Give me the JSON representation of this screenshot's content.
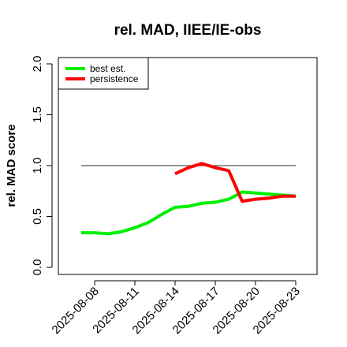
{
  "chart_data": {
    "type": "line",
    "title": "rel. MAD, IIEE/IE-obs",
    "xlabel": "",
    "ylabel": "rel. MAD score",
    "ylim": [
      0.0,
      2.0
    ],
    "yticks": [
      "0.0",
      "0.5",
      "1.0",
      "1.5",
      "2.0"
    ],
    "xticks": [
      "2025-08-08",
      "2025-08-11",
      "2025-08-14",
      "2025-08-17",
      "2025-08-20",
      "2025-08-23"
    ],
    "x_range": [
      "2025-08-06",
      "2025-08-24"
    ],
    "grid": false,
    "legend_position": "top-left",
    "reference_line": {
      "y": 1.0,
      "x_start": "2025-08-07",
      "x_end": "2025-08-23",
      "color": "#555555"
    },
    "series": [
      {
        "name": "best est.",
        "color": "#00ee00",
        "x": [
          "2025-08-07",
          "2025-08-08",
          "2025-08-09",
          "2025-08-10",
          "2025-08-11",
          "2025-08-12",
          "2025-08-13",
          "2025-08-14",
          "2025-08-15",
          "2025-08-16",
          "2025-08-17",
          "2025-08-18",
          "2025-08-19",
          "2025-08-20",
          "2025-08-21",
          "2025-08-22",
          "2025-08-23"
        ],
        "values": [
          0.34,
          0.34,
          0.33,
          0.35,
          0.39,
          0.44,
          0.52,
          0.59,
          0.6,
          0.63,
          0.64,
          0.67,
          0.74,
          0.73,
          0.72,
          0.71,
          0.7
        ]
      },
      {
        "name": "persistence",
        "color": "#ff0000",
        "x": [
          "2025-08-14",
          "2025-08-15",
          "2025-08-16",
          "2025-08-17",
          "2025-08-18",
          "2025-08-19",
          "2025-08-20",
          "2025-08-21",
          "2025-08-22",
          "2025-08-23"
        ],
        "values": [
          0.92,
          0.98,
          1.02,
          0.98,
          0.95,
          0.65,
          0.67,
          0.68,
          0.7,
          0.7
        ]
      }
    ]
  }
}
